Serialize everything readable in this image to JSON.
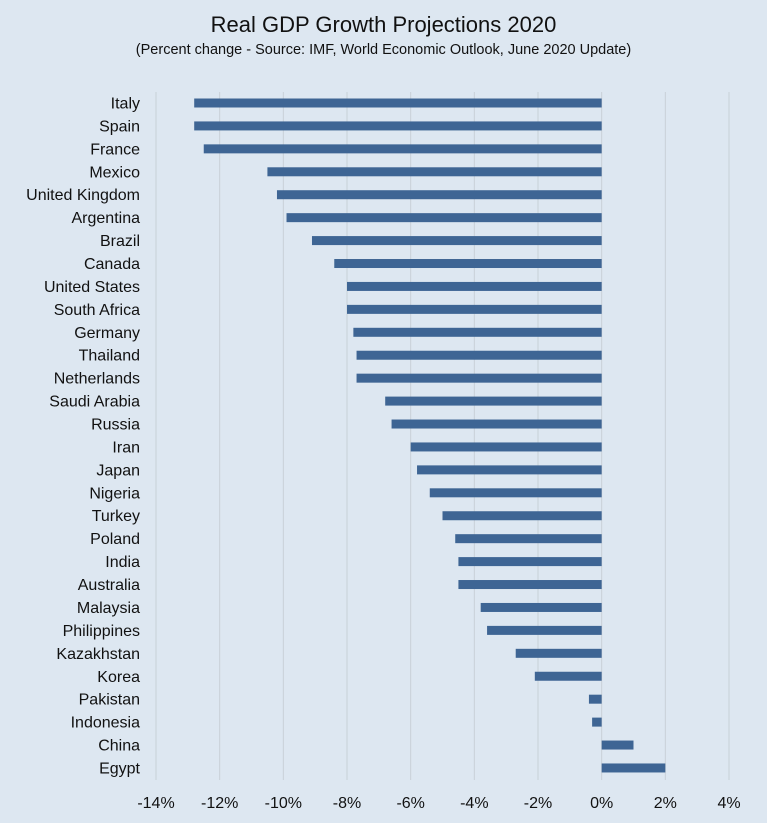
{
  "chart_data": {
    "type": "bar",
    "orientation": "horizontal",
    "title": "Real GDP Growth Projections 2020",
    "subtitle": "(Percent change - Source: IMF, World Economic Outlook, June 2020 Update)",
    "xlabel": "",
    "ylabel": "",
    "xlim": [
      -14,
      4
    ],
    "xticks": [
      -14,
      -12,
      -10,
      -8,
      -6,
      -4,
      -2,
      0,
      2,
      4
    ],
    "tick_labels": [
      "-14%",
      "-12%",
      "-10%",
      "-8%",
      "-6%",
      "-4%",
      "-2%",
      "0%",
      "2%",
      "4%"
    ],
    "grid": true,
    "legend": "none",
    "bar_color": "#3e6594",
    "categories": [
      "Italy",
      "Spain",
      "France",
      "Mexico",
      "United Kingdom",
      "Argentina",
      "Brazil",
      "Canada",
      "United States",
      "South Africa",
      "Germany",
      "Thailand",
      "Netherlands",
      "Saudi Arabia",
      "Russia",
      "Iran",
      "Japan",
      "Nigeria",
      "Turkey",
      "Poland",
      "India",
      "Australia",
      "Malaysia",
      "Philippines",
      "Kazakhstan",
      "Korea",
      "Pakistan",
      "Indonesia",
      "China",
      "Egypt"
    ],
    "values": [
      -12.8,
      -12.8,
      -12.5,
      -10.5,
      -10.2,
      -9.9,
      -9.1,
      -8.4,
      -8.0,
      -8.0,
      -7.8,
      -7.7,
      -7.7,
      -6.8,
      -6.6,
      -6.0,
      -5.8,
      -5.4,
      -5.0,
      -4.6,
      -4.5,
      -4.5,
      -3.8,
      -3.6,
      -2.7,
      -2.1,
      -0.4,
      -0.3,
      1.0,
      2.0
    ]
  }
}
